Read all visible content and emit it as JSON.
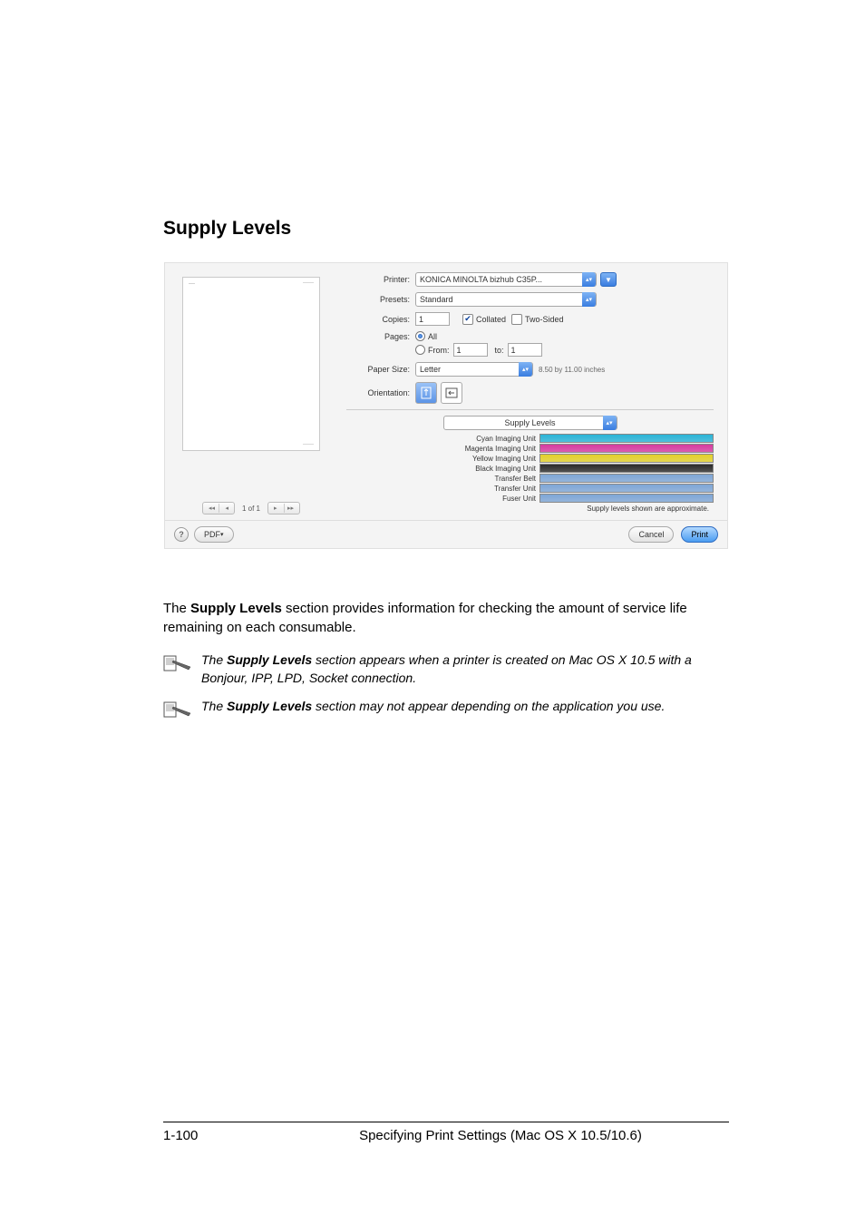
{
  "section_title": "Supply Levels",
  "dialog": {
    "printer_label": "Printer:",
    "printer_value": "KONICA MINOLTA bizhub C35P...",
    "presets_label": "Presets:",
    "presets_value": "Standard",
    "copies_label": "Copies:",
    "copies_value": "1",
    "collated_label": "Collated",
    "collated_checked": true,
    "twosided_label": "Two-Sided",
    "twosided_checked": false,
    "pages_label": "Pages:",
    "pages_all_label": "All",
    "pages_all_selected": true,
    "from_label": "From:",
    "from_value": "1",
    "to_label": "to:",
    "to_value": "1",
    "paper_size_label": "Paper Size:",
    "paper_size_value": "Letter",
    "paper_size_note": "8.50 by 11.00 inches",
    "orientation_label": "Orientation:",
    "dropdown_value": "Supply Levels",
    "pager_text": "1 of 1",
    "supplies": [
      {
        "label": "Cyan Imaging Unit",
        "pct": 100,
        "color": "#29b3d6"
      },
      {
        "label": "Magenta Imaging Unit",
        "pct": 100,
        "color": "#d63aa0"
      },
      {
        "label": "Yellow Imaging Unit",
        "pct": 100,
        "color": "#e2d02a"
      },
      {
        "label": "Black Imaging Unit",
        "pct": 100,
        "color": "#2a2a2a"
      },
      {
        "label": "Transfer Belt",
        "pct": 100,
        "color": "#7ea6d6"
      },
      {
        "label": "Transfer Unit",
        "pct": 100,
        "color": "#7ea6d6"
      },
      {
        "label": "Fuser Unit",
        "pct": 100,
        "color": "#7ea6d6"
      }
    ],
    "approx_text": "Supply levels shown are approximate.",
    "help_label": "?",
    "pdf_label": "PDF",
    "cancel_label": "Cancel",
    "print_label": "Print"
  },
  "body_paragraph_pre": "The ",
  "body_paragraph_bold": "Supply Levels",
  "body_paragraph_post": " section provides information for checking the amount of service life remaining on each consumable.",
  "note1_pre": "The ",
  "note1_bold": "Supply Levels",
  "note1_post": " section appears when a printer is created on Mac OS X 10.5 with a Bonjour, IPP, LPD, Socket connection.",
  "note2_pre": "The ",
  "note2_bold": "Supply Levels",
  "note2_post": " section may not appear depending on the application you use.",
  "footer": {
    "page_number": "1-100",
    "title": "Specifying Print Settings (Mac OS X 10.5/10.6)"
  }
}
